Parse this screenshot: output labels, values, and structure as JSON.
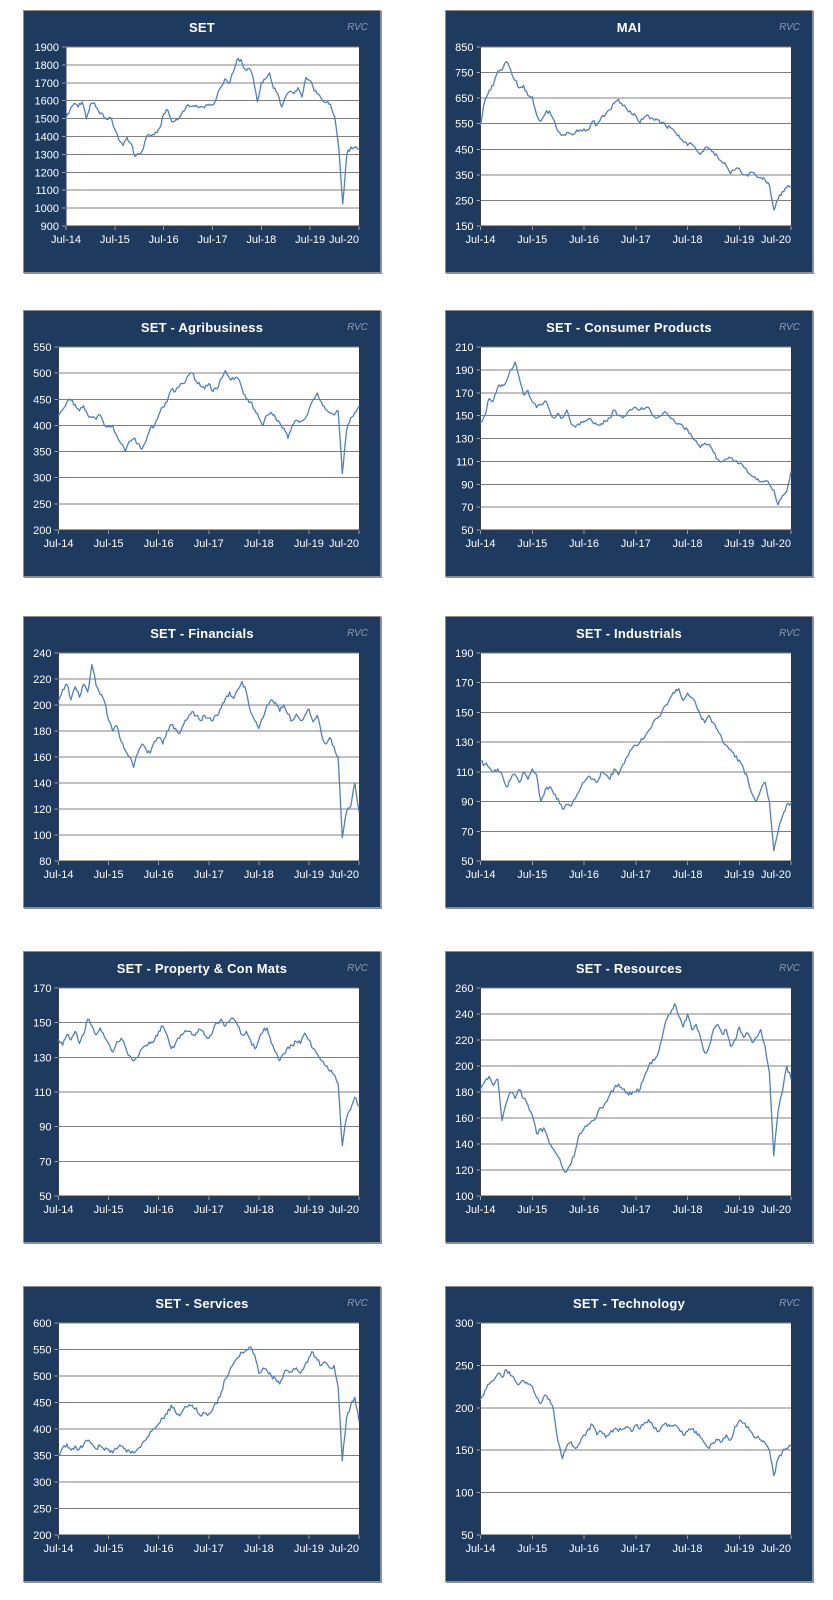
{
  "watermark": "RVC",
  "colors": {
    "frame_background": "#1F3A5F",
    "frame_border": "#8E8E8E",
    "plot_background": "#FFFFFF",
    "series_line": "#4F81BD",
    "gridline": "#808080",
    "axis_line": "#3F3F3F",
    "tick_mark": "#9AA3B0",
    "label_text": "#FFFFFF",
    "watermark_text": "#8E99AB"
  },
  "chart_data": [
    {
      "type": "line",
      "title": "SET",
      "xlabel": "",
      "ylabel": "",
      "ylim": [
        900,
        1900
      ],
      "ytick_step": 100,
      "grid": true,
      "legend": "none",
      "x_tick_labels": [
        "Jul-14",
        "Jul-15",
        "Jul-16",
        "Jul-17",
        "Jul-18",
        "Jul-19",
        "Jul-20"
      ],
      "x_unit": "monthly, Jul-2014 to Jul-2020",
      "values": [
        1502,
        1550,
        1585,
        1565,
        1593,
        1498,
        1581,
        1587,
        1541,
        1527,
        1496,
        1505,
        1440,
        1382,
        1349,
        1395,
        1360,
        1288,
        1301,
        1332,
        1408,
        1405,
        1424,
        1445,
        1524,
        1548,
        1483,
        1495,
        1510,
        1542,
        1577,
        1568,
        1575,
        1566,
        1561,
        1575,
        1576,
        1616,
        1673,
        1721,
        1697,
        1754,
        1827,
        1830,
        1776,
        1780,
        1726,
        1595,
        1702,
        1722,
        1756,
        1669,
        1641,
        1564,
        1624,
        1653,
        1639,
        1673,
        1620,
        1730,
        1712,
        1655,
        1637,
        1601,
        1590,
        1580,
        1514,
        1340,
        1024,
        1301,
        1342,
        1339,
        1328
      ]
    },
    {
      "type": "line",
      "title": "MAI",
      "xlabel": "",
      "ylabel": "",
      "ylim": [
        150,
        850
      ],
      "ytick_step": 100,
      "grid": true,
      "legend": "none",
      "x_tick_labels": [
        "Jul-14",
        "Jul-15",
        "Jul-16",
        "Jul-17",
        "Jul-18",
        "Jul-19",
        "Jul-20"
      ],
      "x_unit": "monthly, Jul-2014 to Jul-2020",
      "values": [
        545,
        640,
        680,
        700,
        755,
        760,
        793,
        760,
        720,
        690,
        700,
        660,
        655,
        585,
        560,
        590,
        600,
        565,
        520,
        505,
        515,
        510,
        515,
        525,
        530,
        525,
        560,
        545,
        575,
        585,
        605,
        630,
        645,
        620,
        605,
        590,
        580,
        555,
        575,
        580,
        570,
        565,
        555,
        540,
        535,
        520,
        505,
        480,
        465,
        470,
        450,
        430,
        455,
        450,
        440,
        420,
        400,
        385,
        355,
        370,
        375,
        350,
        345,
        360,
        345,
        340,
        330,
        310,
        213,
        255,
        285,
        300,
        305
      ]
    },
    {
      "type": "line",
      "title": "SET - Agribusiness",
      "xlabel": "",
      "ylabel": "",
      "ylim": [
        200,
        550
      ],
      "ytick_step": 50,
      "grid": true,
      "legend": "none",
      "x_tick_labels": [
        "Jul-14",
        "Jul-15",
        "Jul-16",
        "Jul-17",
        "Jul-18",
        "Jul-19",
        "Jul-20"
      ],
      "x_unit": "monthly, Jul-2014 to Jul-2020",
      "values": [
        418,
        430,
        445,
        448,
        440,
        428,
        438,
        420,
        415,
        412,
        420,
        400,
        398,
        400,
        380,
        365,
        350,
        370,
        375,
        365,
        355,
        370,
        395,
        400,
        420,
        435,
        445,
        468,
        465,
        475,
        480,
        495,
        500,
        485,
        475,
        470,
        480,
        465,
        470,
        490,
        505,
        490,
        488,
        490,
        470,
        450,
        445,
        430,
        415,
        400,
        420,
        425,
        415,
        405,
        395,
        375,
        400,
        410,
        408,
        412,
        430,
        450,
        462,
        445,
        430,
        425,
        420,
        428,
        308,
        390,
        415,
        425,
        437
      ]
    },
    {
      "type": "line",
      "title": "SET - Consumer Products",
      "xlabel": "",
      "ylabel": "",
      "ylim": [
        50,
        210
      ],
      "ytick_step": 20,
      "grid": true,
      "legend": "none",
      "x_tick_labels": [
        "Jul-14",
        "Jul-15",
        "Jul-16",
        "Jul-17",
        "Jul-18",
        "Jul-19",
        "Jul-20"
      ],
      "x_unit": "monthly, Jul-2014 to Jul-2020",
      "values": [
        144,
        150,
        165,
        163,
        175,
        177,
        180,
        190,
        197,
        183,
        168,
        172,
        162,
        157,
        160,
        163,
        155,
        148,
        152,
        148,
        155,
        143,
        140,
        142,
        145,
        147,
        144,
        142,
        143,
        145,
        148,
        155,
        150,
        148,
        152,
        155,
        157,
        155,
        156,
        157,
        150,
        148,
        150,
        153,
        148,
        145,
        143,
        140,
        138,
        132,
        128,
        122,
        126,
        125,
        118,
        112,
        110,
        112,
        113,
        110,
        108,
        105,
        100,
        97,
        94,
        92,
        93,
        90,
        85,
        72,
        80,
        84,
        101
      ]
    },
    {
      "type": "line",
      "title": "SET - Financials",
      "xlabel": "",
      "ylabel": "",
      "ylim": [
        80,
        240
      ],
      "ytick_step": 20,
      "grid": true,
      "legend": "none",
      "x_tick_labels": [
        "Jul-14",
        "Jul-15",
        "Jul-16",
        "Jul-17",
        "Jul-18",
        "Jul-19",
        "Jul-20"
      ],
      "x_unit": "monthly, Jul-2014 to Jul-2020",
      "values": [
        203,
        212,
        216,
        204,
        214,
        206,
        216,
        210,
        231,
        215,
        208,
        203,
        188,
        180,
        184,
        172,
        165,
        160,
        152,
        163,
        170,
        166,
        163,
        172,
        175,
        170,
        180,
        185,
        182,
        178,
        185,
        190,
        195,
        192,
        188,
        192,
        190,
        188,
        192,
        198,
        205,
        210,
        205,
        212,
        218,
        210,
        195,
        188,
        182,
        190,
        200,
        204,
        202,
        195,
        200,
        193,
        188,
        193,
        188,
        192,
        197,
        187,
        192,
        178,
        170,
        175,
        168,
        160,
        98,
        118,
        122,
        140,
        118
      ]
    },
    {
      "type": "line",
      "title": "SET - Industrials",
      "xlabel": "",
      "ylabel": "",
      "ylim": [
        50,
        190
      ],
      "ytick_step": 20,
      "grid": true,
      "legend": "none",
      "x_tick_labels": [
        "Jul-14",
        "Jul-15",
        "Jul-16",
        "Jul-17",
        "Jul-18",
        "Jul-19",
        "Jul-20"
      ],
      "x_unit": "monthly, Jul-2014 to Jul-2020",
      "values": [
        117,
        115,
        113,
        110,
        112,
        108,
        100,
        105,
        108,
        103,
        110,
        105,
        112,
        108,
        90,
        98,
        100,
        95,
        92,
        85,
        88,
        87,
        92,
        98,
        103,
        107,
        105,
        103,
        110,
        108,
        105,
        112,
        108,
        115,
        120,
        125,
        128,
        130,
        133,
        138,
        143,
        146,
        150,
        155,
        160,
        163,
        166,
        158,
        163,
        160,
        155,
        148,
        143,
        148,
        143,
        138,
        132,
        128,
        125,
        120,
        118,
        112,
        105,
        95,
        90,
        98,
        103,
        90,
        57,
        70,
        80,
        88,
        89
      ]
    },
    {
      "type": "line",
      "title": "SET - Property & Con Mats",
      "xlabel": "",
      "ylabel": "",
      "ylim": [
        50,
        170
      ],
      "ytick_step": 20,
      "grid": true,
      "legend": "none",
      "x_tick_labels": [
        "Jul-14",
        "Jul-15",
        "Jul-16",
        "Jul-17",
        "Jul-18",
        "Jul-19",
        "Jul-20"
      ],
      "x_unit": "monthly, Jul-2014 to Jul-2020",
      "values": [
        140,
        137,
        143,
        140,
        145,
        138,
        143,
        152,
        148,
        143,
        147,
        142,
        138,
        133,
        139,
        141,
        136,
        131,
        128,
        130,
        135,
        137,
        138,
        140,
        145,
        148,
        143,
        135,
        138,
        141,
        144,
        145,
        143,
        144,
        146,
        143,
        141,
        145,
        150,
        152,
        148,
        151,
        152,
        148,
        143,
        145,
        140,
        135,
        140,
        145,
        147,
        138,
        133,
        128,
        132,
        136,
        137,
        139,
        138,
        144,
        140,
        135,
        132,
        128,
        125,
        122,
        120,
        115,
        79,
        95,
        100,
        107,
        102
      ]
    },
    {
      "type": "line",
      "title": "SET - Resources",
      "xlabel": "",
      "ylabel": "",
      "ylim": [
        100,
        260
      ],
      "ytick_step": 20,
      "grid": true,
      "legend": "none",
      "x_tick_labels": [
        "Jul-14",
        "Jul-15",
        "Jul-16",
        "Jul-17",
        "Jul-18",
        "Jul-19",
        "Jul-20"
      ],
      "x_unit": "monthly, Jul-2014 to Jul-2020",
      "values": [
        182,
        188,
        192,
        185,
        190,
        158,
        172,
        180,
        175,
        182,
        175,
        170,
        162,
        148,
        152,
        150,
        140,
        136,
        130,
        122,
        119,
        125,
        135,
        148,
        152,
        155,
        158,
        162,
        168,
        172,
        178,
        183,
        186,
        182,
        180,
        178,
        180,
        182,
        192,
        200,
        205,
        208,
        220,
        235,
        240,
        248,
        238,
        230,
        240,
        228,
        232,
        222,
        210,
        215,
        228,
        232,
        225,
        228,
        215,
        220,
        230,
        222,
        225,
        218,
        222,
        228,
        215,
        195,
        131,
        165,
        180,
        200,
        190
      ]
    },
    {
      "type": "line",
      "title": "SET - Services",
      "xlabel": "",
      "ylabel": "",
      "ylim": [
        200,
        600
      ],
      "ytick_step": 50,
      "grid": true,
      "legend": "none",
      "x_tick_labels": [
        "Jul-14",
        "Jul-15",
        "Jul-16",
        "Jul-17",
        "Jul-18",
        "Jul-19",
        "Jul-20"
      ],
      "x_unit": "monthly, Jul-2014 to Jul-2020",
      "values": [
        352,
        365,
        372,
        360,
        368,
        362,
        370,
        378,
        372,
        362,
        368,
        360,
        362,
        355,
        362,
        368,
        362,
        358,
        355,
        362,
        372,
        380,
        395,
        400,
        410,
        420,
        428,
        445,
        432,
        425,
        438,
        442,
        445,
        440,
        425,
        430,
        428,
        438,
        448,
        470,
        495,
        510,
        525,
        535,
        545,
        550,
        555,
        540,
        505,
        515,
        510,
        500,
        495,
        485,
        505,
        510,
        508,
        515,
        505,
        520,
        535,
        545,
        530,
        520,
        525,
        515,
        520,
        480,
        340,
        420,
        445,
        460,
        415
      ]
    },
    {
      "type": "line",
      "title": "SET - Technology",
      "xlabel": "",
      "ylabel": "",
      "ylim": [
        50,
        300
      ],
      "ytick_step": 50,
      "grid": true,
      "legend": "none",
      "x_tick_labels": [
        "Jul-14",
        "Jul-15",
        "Jul-16",
        "Jul-17",
        "Jul-18",
        "Jul-19",
        "Jul-20"
      ],
      "x_unit": "monthly, Jul-2014 to Jul-2020",
      "values": [
        210,
        220,
        228,
        232,
        240,
        236,
        245,
        238,
        232,
        228,
        232,
        228,
        225,
        212,
        205,
        215,
        210,
        195,
        160,
        140,
        155,
        160,
        152,
        158,
        168,
        175,
        180,
        168,
        172,
        165,
        170,
        175,
        172,
        175,
        178,
        172,
        180,
        175,
        182,
        186,
        178,
        172,
        178,
        182,
        178,
        180,
        175,
        168,
        172,
        175,
        172,
        165,
        158,
        152,
        158,
        162,
        160,
        168,
        162,
        178,
        185,
        182,
        178,
        170,
        165,
        162,
        158,
        150,
        120,
        140,
        148,
        152,
        155
      ]
    }
  ]
}
